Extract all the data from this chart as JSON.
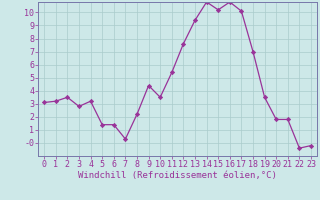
{
  "x": [
    0,
    1,
    2,
    3,
    4,
    5,
    6,
    7,
    8,
    9,
    10,
    11,
    12,
    13,
    14,
    15,
    16,
    17,
    18,
    19,
    20,
    21,
    22,
    23
  ],
  "y": [
    3.1,
    3.2,
    3.5,
    2.8,
    3.2,
    1.4,
    1.4,
    0.3,
    2.2,
    4.4,
    3.5,
    5.4,
    7.6,
    9.4,
    10.8,
    10.2,
    10.8,
    10.1,
    7.0,
    3.5,
    1.8,
    1.8,
    -0.4,
    -0.2
  ],
  "line_color": "#993399",
  "marker": "D",
  "marker_size": 2.2,
  "bg_color": "#cde8e8",
  "grid_color": "#aacccc",
  "axis_color": "#993399",
  "spine_color": "#7777aa",
  "xlabel": "Windchill (Refroidissement éolien,°C)",
  "xlim": [
    -0.5,
    23.5
  ],
  "ylim": [
    -1.0,
    10.8
  ],
  "xticks": [
    0,
    1,
    2,
    3,
    4,
    5,
    6,
    7,
    8,
    9,
    10,
    11,
    12,
    13,
    14,
    15,
    16,
    17,
    18,
    19,
    20,
    21,
    22,
    23
  ],
  "yticks": [
    0,
    1,
    2,
    3,
    4,
    5,
    6,
    7,
    8,
    9,
    10
  ],
  "ytick_labels": [
    "-0",
    "1",
    "2",
    "3",
    "4",
    "5",
    "6",
    "7",
    "8",
    "9",
    "10"
  ],
  "xlabel_fontsize": 6.5,
  "tick_fontsize": 6.0
}
